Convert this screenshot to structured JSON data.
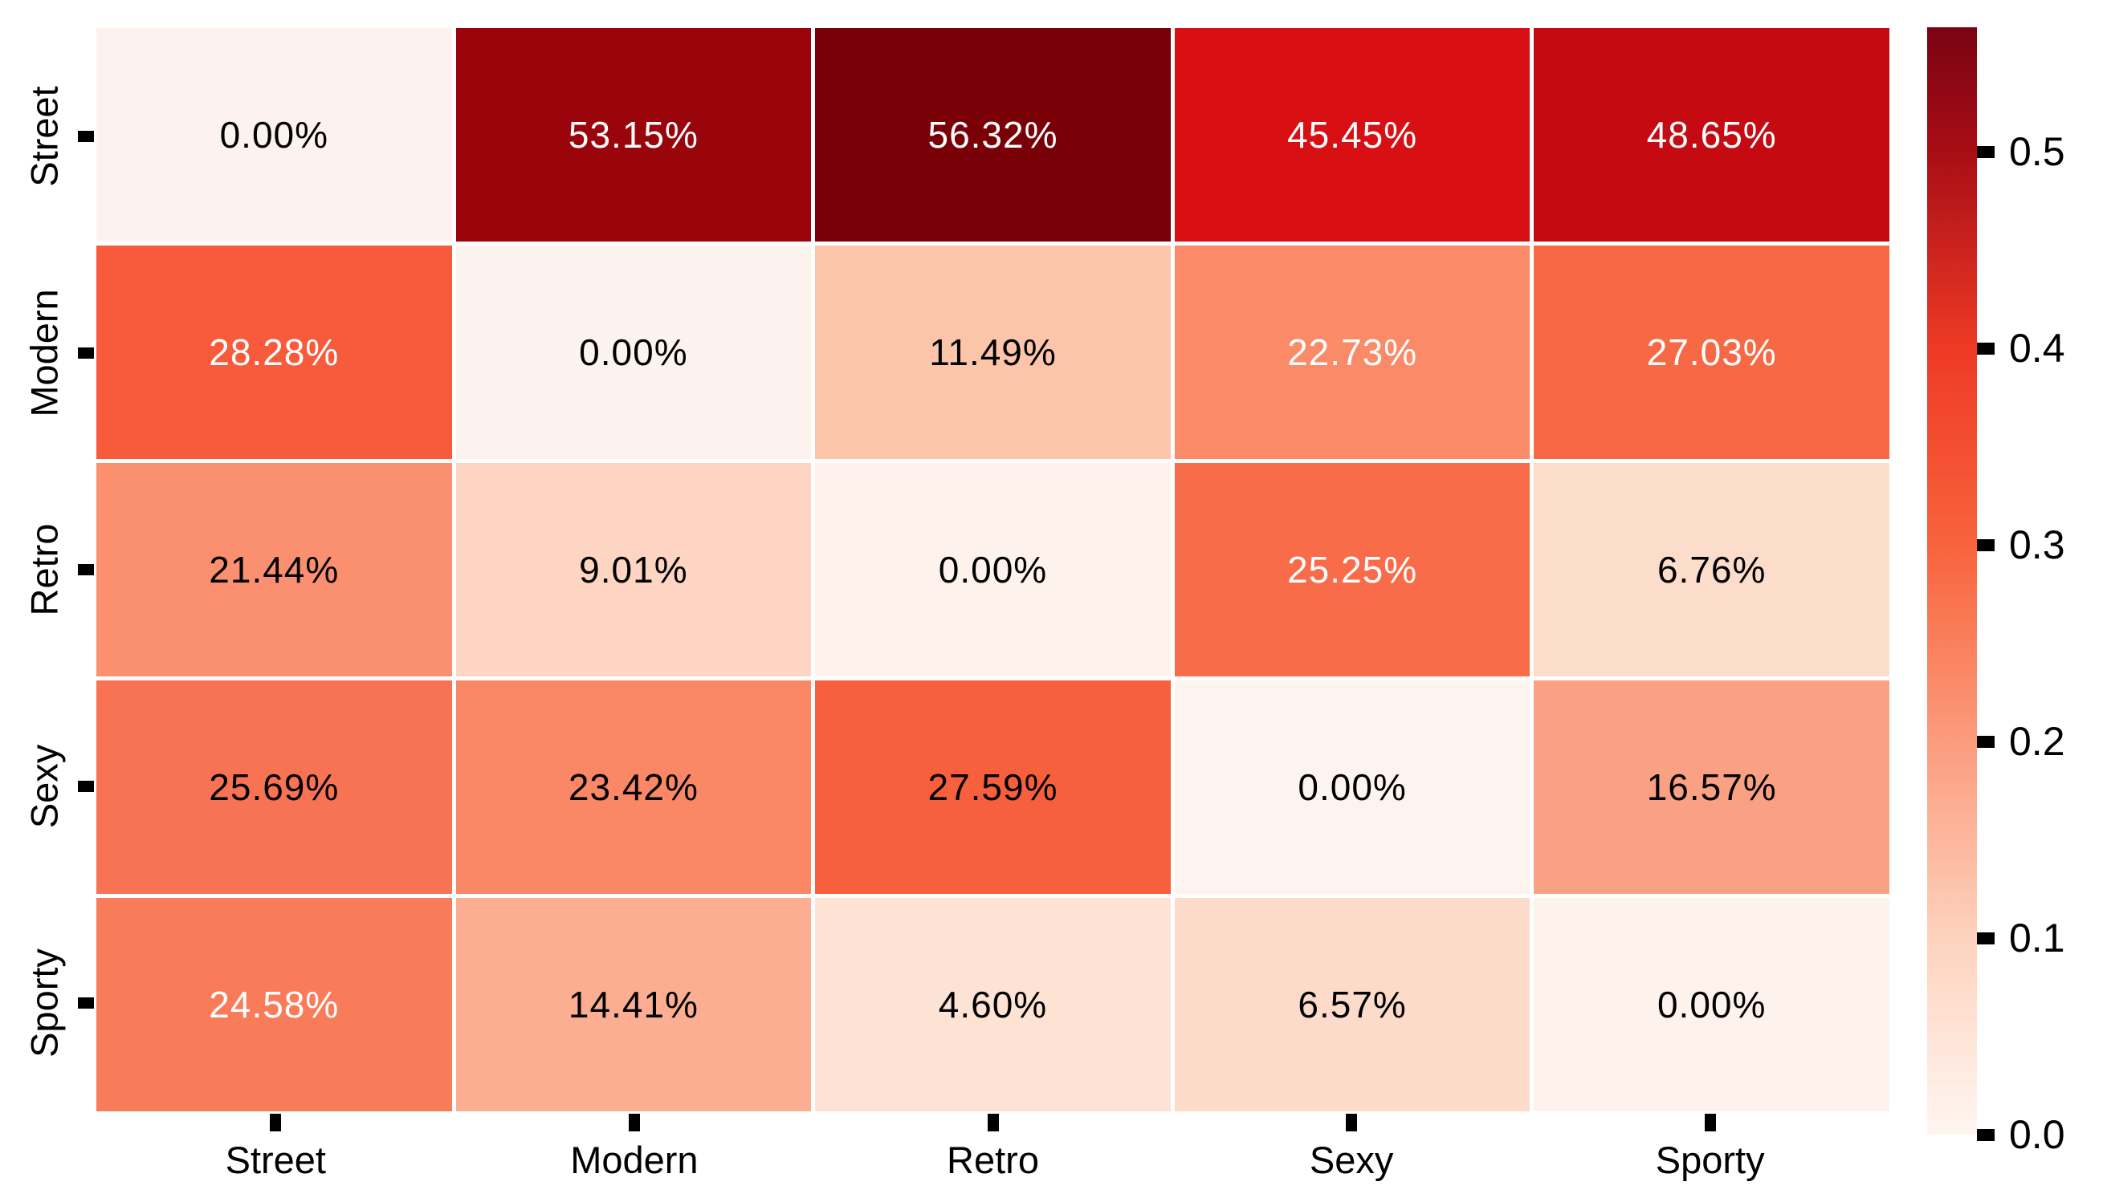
{
  "chart_data": {
    "type": "heatmap",
    "title": "",
    "xlabel": "",
    "ylabel": "",
    "rows": [
      "Street",
      "Modern",
      "Retro",
      "Sexy",
      "Sporty"
    ],
    "cols": [
      "Street",
      "Modern",
      "Retro",
      "Sexy",
      "Sporty"
    ],
    "values_percent": [
      [
        0.0,
        53.15,
        56.32,
        45.45,
        48.65
      ],
      [
        28.28,
        0.0,
        11.49,
        22.73,
        27.03
      ],
      [
        21.44,
        9.01,
        0.0,
        25.25,
        6.76
      ],
      [
        25.69,
        23.42,
        27.59,
        0.0,
        16.57
      ],
      [
        24.58,
        14.41,
        4.6,
        6.57,
        0.0
      ]
    ],
    "cell_labels": [
      [
        "0.00%",
        "53.15%",
        "56.32%",
        "45.45%",
        "48.65%"
      ],
      [
        "28.28%",
        "0.00%",
        "11.49%",
        "22.73%",
        "27.03%"
      ],
      [
        "21.44%",
        "9.01%",
        "0.00%",
        "25.25%",
        "6.76%"
      ],
      [
        "25.69%",
        "23.42%",
        "27.59%",
        "0.00%",
        "16.57%"
      ],
      [
        "24.58%",
        "14.41%",
        "4.60%",
        "6.57%",
        "0.00%"
      ]
    ],
    "cell_colors": [
      [
        "#fdf3ee",
        "#9a040b",
        "#7a0008",
        "#d80f13",
        "#c50a12"
      ],
      [
        "#f75b3c",
        "#fdf3ee",
        "#fcc5aa",
        "#fa8a68",
        "#f76945"
      ],
      [
        "#fb9071",
        "#fdd5c2",
        "#fdf2ec",
        "#f96c4a",
        "#fcdccb"
      ],
      [
        "#f87354",
        "#fa8766",
        "#f6603c",
        "#fdf4ef",
        "#fba183"
      ],
      [
        "#f97c5a",
        "#fbae91",
        "#fde3d4",
        "#fcdbca",
        "#fdf2ec"
      ]
    ],
    "cell_text_colors": [
      [
        "#000000",
        "#ffffff",
        "#ffffff",
        "#ffffff",
        "#ffffff"
      ],
      [
        "#ffffff",
        "#000000",
        "#000000",
        "#ffffff",
        "#ffffff"
      ],
      [
        "#000000",
        "#000000",
        "#000000",
        "#ffffff",
        "#000000"
      ],
      [
        "#000000",
        "#000000",
        "#000000",
        "#000000",
        "#000000"
      ],
      [
        "#ffffff",
        "#000000",
        "#000000",
        "#000000",
        "#000000"
      ]
    ],
    "colormap": "Reds",
    "gridlines": "white cell separators",
    "legend_position": "colorbar right",
    "colorbar": {
      "vmin": 0.0,
      "vmax": 0.5632,
      "tick_labels": [
        "0.5",
        "0.4",
        "0.3",
        "0.2",
        "0.1",
        "0.0"
      ],
      "tick_values": [
        0.5,
        0.4,
        0.3,
        0.2,
        0.1,
        0.0
      ],
      "gradient_colors": [
        "#fff6f1",
        "#fdd2bd",
        "#fb9c7d",
        "#f8633c",
        "#ee3a26",
        "#a80d15",
        "#7a0313"
      ],
      "gradient_positions": [
        0.0,
        0.178,
        0.355,
        0.533,
        0.71,
        0.888,
        1.0
      ]
    }
  }
}
